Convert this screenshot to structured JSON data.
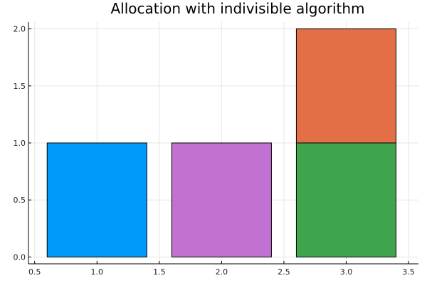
{
  "chart_data": {
    "type": "bar",
    "title": "Allocation with indivisible algorithm",
    "xlabel": "",
    "ylabel": "",
    "xlim": [
      0.45,
      3.58
    ],
    "ylim": [
      -0.06,
      2.06
    ],
    "xticks": [
      0.5,
      1.0,
      1.5,
      2.0,
      2.5,
      3.0,
      3.5
    ],
    "xtick_labels": [
      "0.5",
      "1.0",
      "1.5",
      "2.0",
      "2.5",
      "3.0",
      "3.5"
    ],
    "yticks": [
      0.0,
      0.5,
      1.0,
      1.5,
      2.0
    ],
    "ytick_labels": [
      "0.0",
      "0.5",
      "1.0",
      "1.5",
      "2.0"
    ],
    "grid": true,
    "legend": false,
    "bar_width": 0.8,
    "bars": [
      {
        "x": 1,
        "bottom": 0,
        "value": 1,
        "color": "#009AFA"
      },
      {
        "x": 2,
        "bottom": 0,
        "value": 1,
        "color": "#C271D2"
      },
      {
        "x": 3,
        "bottom": 0,
        "value": 1,
        "color": "#3EA44E"
      },
      {
        "x": 3,
        "bottom": 1,
        "value": 1,
        "color": "#E26F46"
      }
    ]
  }
}
